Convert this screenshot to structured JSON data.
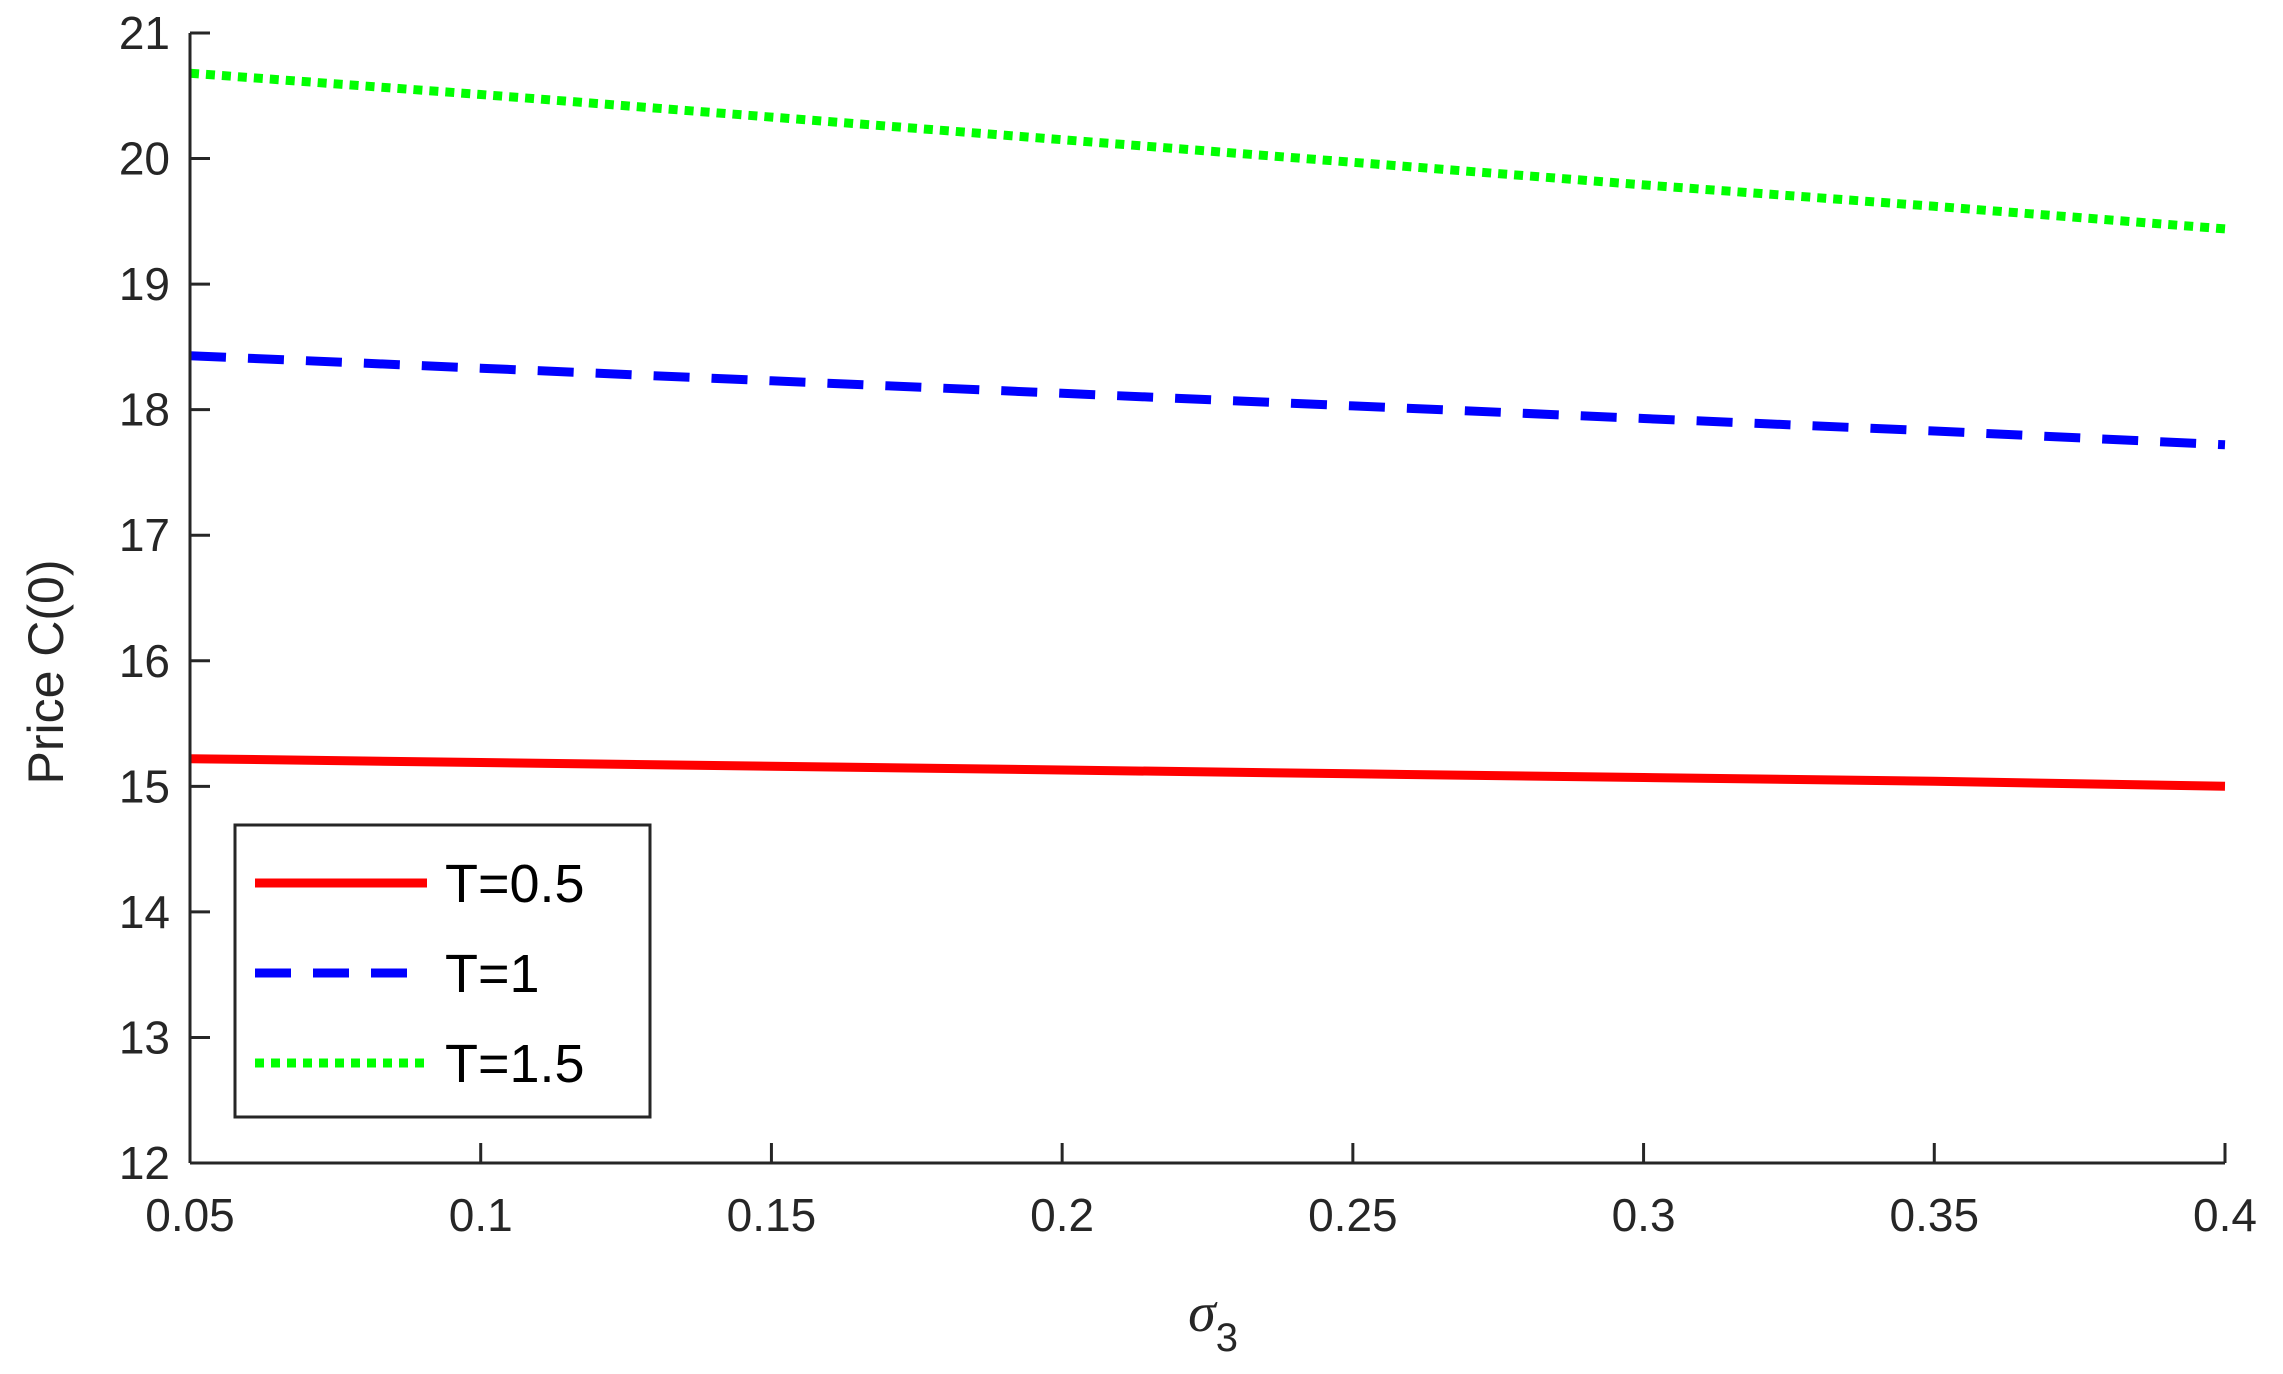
{
  "chart_data": {
    "type": "line",
    "title": "",
    "xlabel": {
      "base": "σ",
      "sub": "3"
    },
    "ylabel": "Price C(0)",
    "xlim": [
      0.05,
      0.4
    ],
    "ylim": [
      12,
      21
    ],
    "xticks": [
      "0.05",
      "0.1",
      "0.15",
      "0.2",
      "0.25",
      "0.3",
      "0.35",
      "0.4"
    ],
    "yticks": [
      "12",
      "13",
      "14",
      "15",
      "16",
      "17",
      "18",
      "19",
      "20",
      "21"
    ],
    "grid": false,
    "legend_position": "bottom-left",
    "x": [
      0.05,
      0.1,
      0.15,
      0.2,
      0.25,
      0.3,
      0.35,
      0.4
    ],
    "series": [
      {
        "name": "T=0.5",
        "color": "#ff0000",
        "style": "solid",
        "values": [
          15.22,
          15.19,
          15.16,
          15.13,
          15.1,
          15.07,
          15.04,
          15.0
        ]
      },
      {
        "name": "T=1",
        "color": "#0000ff",
        "style": "dashed",
        "values": [
          18.43,
          18.33,
          18.23,
          18.13,
          18.03,
          17.93,
          17.83,
          17.72
        ]
      },
      {
        "name": "T=1.5",
        "color": "#00ff00",
        "style": "dotted",
        "values": [
          20.68,
          20.51,
          20.33,
          20.15,
          19.97,
          19.79,
          19.62,
          19.44
        ]
      }
    ]
  }
}
